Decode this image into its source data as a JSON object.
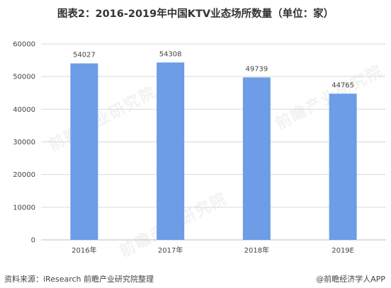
{
  "title": "图表2：2016-2019年中国KTV业态场所数量（单位：家）",
  "footer": {
    "source": "资料来源：iResearch 前瞻产业研究院整理",
    "brand": "@前瞻经济学人APP"
  },
  "watermark": "前瞻产业研究院",
  "colors": {
    "bar": "#6C9DE6",
    "grid": "#D9D9D9",
    "axis": "#BFBFBF"
  },
  "chart_data": {
    "type": "bar",
    "title": "图表2：2016-2019年中国KTV业态场所数量（单位：家）",
    "categories": [
      "2016年",
      "2017年",
      "2018年",
      "2019E"
    ],
    "values": [
      54027,
      54308,
      49739,
      44765
    ],
    "data_labels": [
      "54027",
      "54308",
      "49739",
      "44765"
    ],
    "ylim": [
      0,
      60000
    ],
    "yticks": [
      0,
      10000,
      20000,
      30000,
      40000,
      50000,
      60000
    ],
    "ytick_labels": [
      "0",
      "10000",
      "20000",
      "30000",
      "40000",
      "50000",
      "60000"
    ],
    "xlabel": "",
    "ylabel": "",
    "grid": true,
    "legend": "none"
  }
}
